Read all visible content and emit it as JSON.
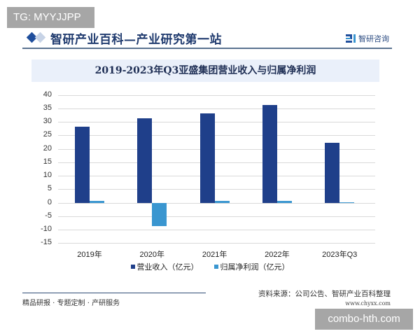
{
  "badges": {
    "top_left": "TG: MYYJJPP",
    "bottom_right": "combo-hth.com"
  },
  "header": {
    "title": "智研产业百科—产业研究第一站",
    "brand": "智研咨询"
  },
  "footer": {
    "left": "精品研报 · 专题定制 · 产研服务",
    "source": "资料来源：公司公告、智研产业百科整理",
    "site": "www.chyxx.com"
  },
  "colors": {
    "revenue": "#1f3f8a",
    "net_profit": "#3a96d0",
    "header_text": "#1f3a6e",
    "title_bg": "#eaf0fa"
  },
  "chart_data": {
    "type": "bar",
    "title": "2019-2023年Q3亚盛集团营业收入与归属净利润",
    "categories": [
      "2019年",
      "2020年",
      "2021年",
      "2022年",
      "2023年Q3"
    ],
    "series": [
      {
        "name": "营业收入（亿元）",
        "values": [
          28.3,
          31.3,
          33.2,
          36.4,
          22.3
        ]
      },
      {
        "name": "归属净利润（亿元）",
        "values": [
          0.7,
          -8.6,
          0.7,
          0.7,
          0.3
        ]
      }
    ],
    "xlabel": "",
    "ylabel": "",
    "ylim": [
      -15,
      40
    ],
    "yticks": [
      "40",
      "35",
      "30",
      "25",
      "20",
      "15",
      "10",
      "5",
      "0",
      "-5",
      "-10",
      "-15"
    ],
    "grid": true,
    "legend_position": "bottom"
  }
}
